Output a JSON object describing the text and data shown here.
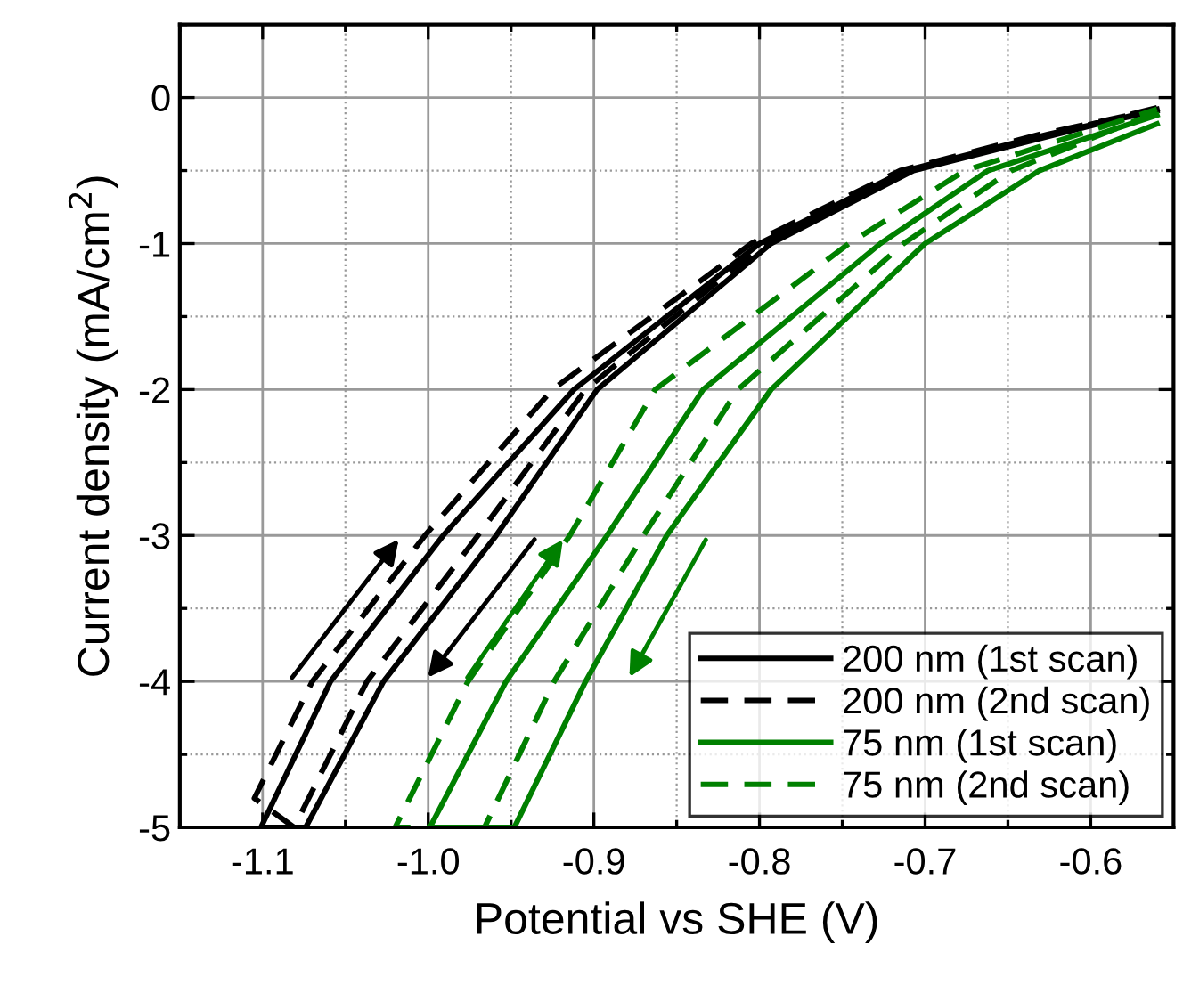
{
  "chart_data": {
    "type": "line",
    "xlabel": "Potential vs SHE (V)",
    "ylabel": "Current density (mA/cm$^{2}$)",
    "xlim": [
      -1.15,
      -0.55
    ],
    "xticks": [
      -1.1,
      {
        "value": -1.0,
        "label": "-1.0"
      },
      -0.9,
      -0.8,
      -0.7,
      -0.6
    ],
    "ylim": [
      -5,
      0.5
    ],
    "yticks": [
      -5,
      -4,
      -3,
      -2,
      -1,
      0
    ],
    "grid": true,
    "legend": "bottom right",
    "marker": "none",
    "series": [
      {
        "name": "200 nm (1st scan)",
        "color": "#000000",
        "line_style": "solid",
        "x": [
          -0.56,
          -0.62,
          -0.707,
          -0.793,
          -0.898,
          -0.959,
          -1.027,
          -1.074,
          -1.101,
          -1.059,
          -0.991,
          -0.912,
          -0.8,
          -0.712,
          -0.625,
          -0.56
        ],
        "values": [
          -0.08,
          -0.25,
          -0.5,
          -1,
          -2,
          -3,
          -4,
          -5,
          -5,
          -4,
          -3,
          -2,
          -1,
          -0.5,
          -0.25,
          -0.09
        ]
      },
      {
        "name": "200 nm (2nd scan)",
        "color": "#000000",
        "line_style": "dashed",
        "x": [
          -0.56,
          -0.62,
          -0.71,
          -0.797,
          -0.905,
          -0.97,
          -1.037,
          -1.081,
          -1.105,
          -1.07,
          -1.002,
          -0.925,
          -0.805,
          -0.715,
          -0.63,
          -0.56
        ],
        "values": [
          -0.07,
          -0.24,
          -0.5,
          -1,
          -2,
          -3,
          -4,
          -5,
          -4.8,
          -4,
          -3,
          -2,
          -1,
          -0.5,
          -0.25,
          -0.08
        ]
      },
      {
        "name": "75 nm (1st scan)",
        "color": "#008000",
        "line_style": "solid",
        "x": [
          -0.56,
          -0.631,
          -0.7,
          -0.793,
          -0.856,
          -0.905,
          -0.948,
          -0.999,
          -0.953,
          -0.892,
          -0.834,
          -0.727,
          -0.662,
          -0.56
        ],
        "values": [
          -0.18,
          -0.5,
          -1,
          -2,
          -3,
          -4,
          -5,
          -5,
          -4,
          -3,
          -2,
          -1,
          -0.5,
          -0.12
        ]
      },
      {
        "name": "75 nm (2nd scan)",
        "color": "#008000",
        "line_style": "dashed",
        "x": [
          -0.56,
          -0.648,
          -0.713,
          -0.813,
          -0.87,
          -0.924,
          -0.966,
          -1.02,
          -0.976,
          -0.9145,
          -0.863,
          -0.746,
          -0.676,
          -0.56
        ],
        "values": [
          -0.1,
          -0.5,
          -1,
          -2,
          -3,
          -4,
          -5,
          -5,
          -4,
          -3,
          -2,
          -1,
          -0.5,
          -0.08
        ]
      }
    ]
  }
}
